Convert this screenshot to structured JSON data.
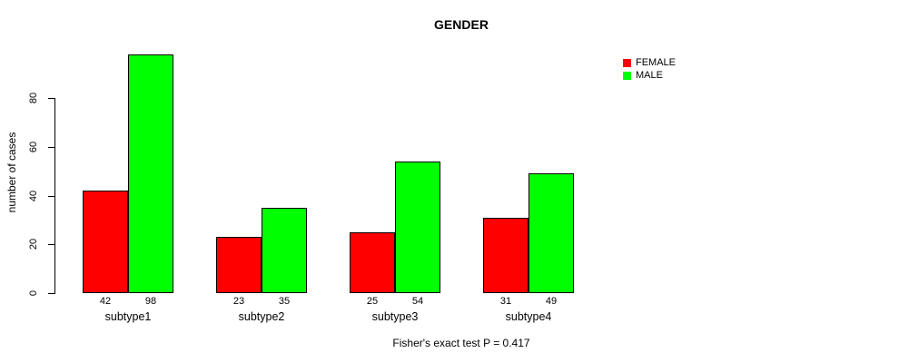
{
  "chart_data": {
    "type": "bar",
    "title": "GENDER",
    "ylabel": "number of cases",
    "xlabel": "",
    "categories": [
      "subtype1",
      "subtype2",
      "subtype3",
      "subtype4"
    ],
    "series": [
      {
        "name": "FEMALE",
        "color": "#FF0000",
        "values": [
          42,
          23,
          25,
          31
        ]
      },
      {
        "name": "MALE",
        "color": "#00FF00",
        "values": [
          98,
          35,
          54,
          49
        ]
      }
    ],
    "yticks": [
      0,
      20,
      40,
      60,
      80
    ],
    "ylim": [
      0,
      100
    ],
    "grid": false,
    "legend_position": "top-right",
    "bar_value_labels": true,
    "annotation": "Fisher's exact test P = 0.417"
  }
}
